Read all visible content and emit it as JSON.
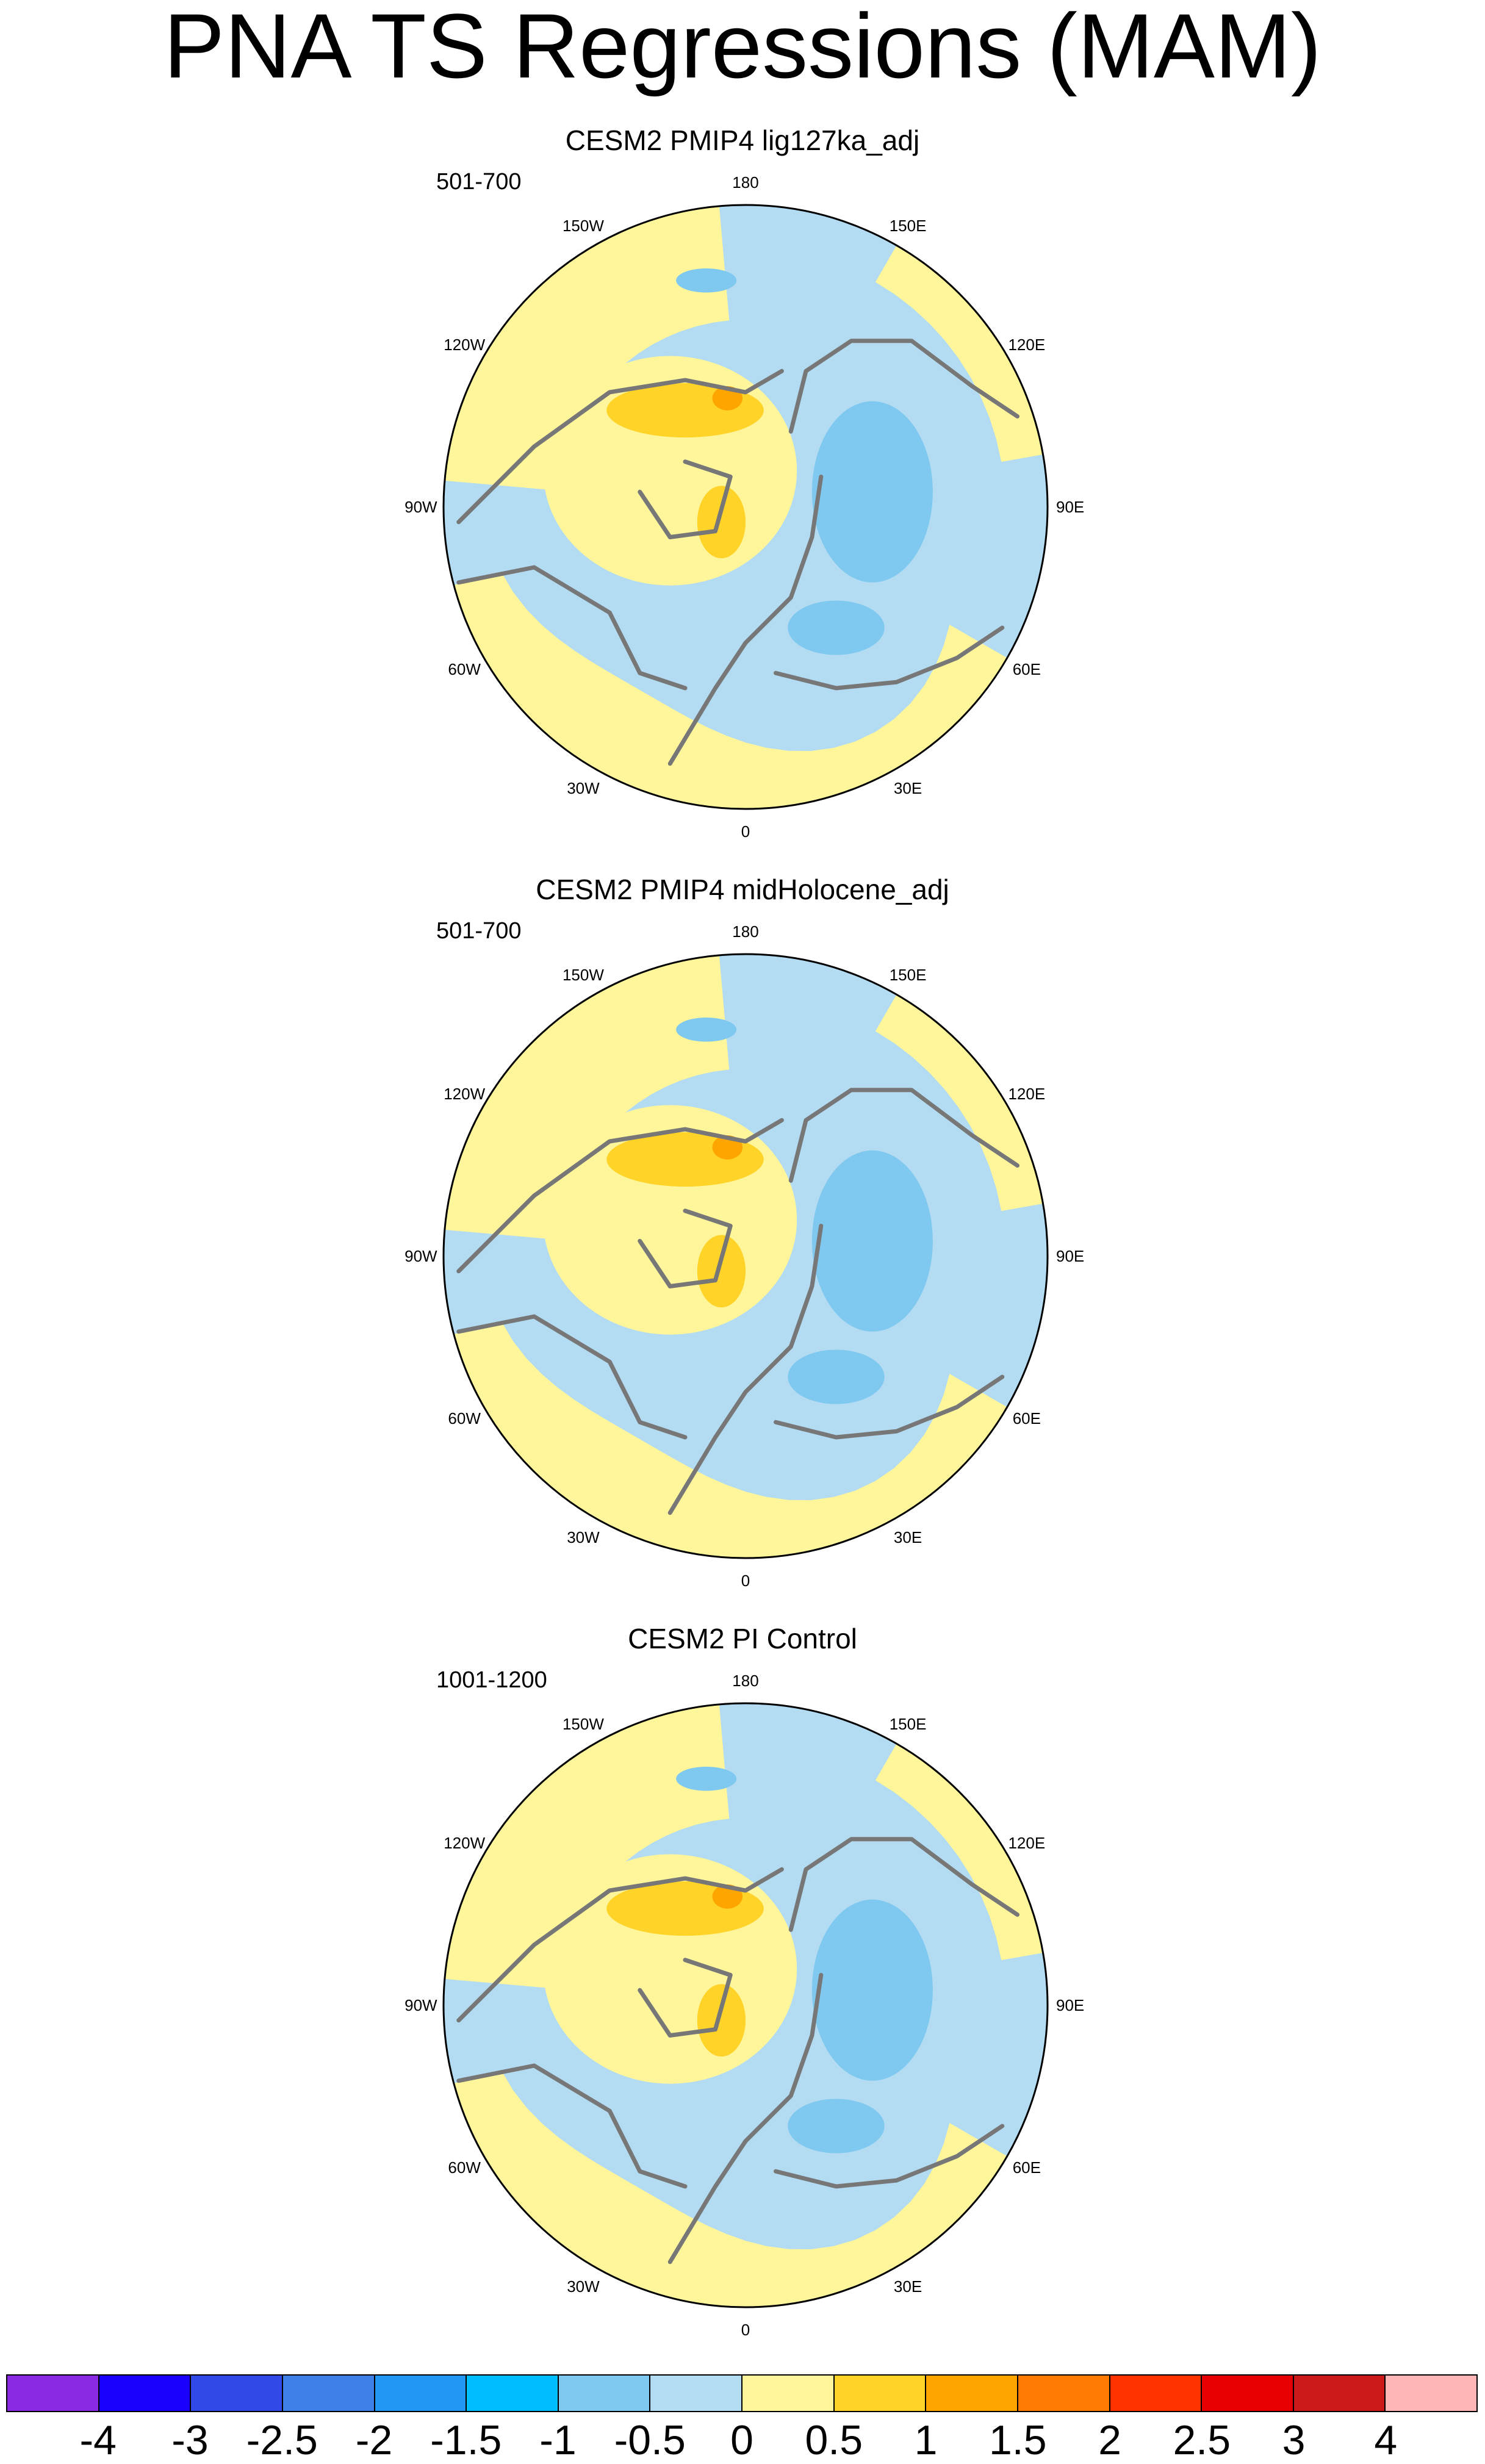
{
  "title": "PNA TS Regressions (MAM)",
  "panels": [
    {
      "title": "CESM2 PMIP4 lig127ka_adj",
      "years": "501-700"
    },
    {
      "title": "CESM2 PMIP4 midHolocene_adj",
      "years": "501-700"
    },
    {
      "title": "CESM2 PI Control",
      "years": "1001-1200"
    }
  ],
  "longitude_labels": [
    "180",
    "150E",
    "120E",
    "90E",
    "60E",
    "30E",
    "0",
    "30W",
    "60W",
    "90W",
    "120W",
    "150W"
  ],
  "colorbar": {
    "labels": [
      "-4",
      "-3",
      "-2.5",
      "-2",
      "-1.5",
      "-1",
      "-0.5",
      "0",
      "0.5",
      "1",
      "1.5",
      "2",
      "2.5",
      "3",
      "4"
    ],
    "colors": [
      "#8a2be2",
      "#1a00ff",
      "#3149e6",
      "#3f7fe8",
      "#2196f3",
      "#00bfff",
      "#7fc8f0",
      "#b3dcf2",
      "#fff59a",
      "#ffd327",
      "#ffa500",
      "#ff7a00",
      "#ff3300",
      "#e60000",
      "#cc1a1a",
      "#ffb6b6"
    ]
  },
  "map_colors": {
    "ocean_negative": "#b3dcf2",
    "positive": "#fff59a",
    "strong_positive": "#ffd327",
    "stronger_positive": "#ffa500",
    "negative_strong": "#7fc8f0",
    "coast": "#777777"
  }
}
